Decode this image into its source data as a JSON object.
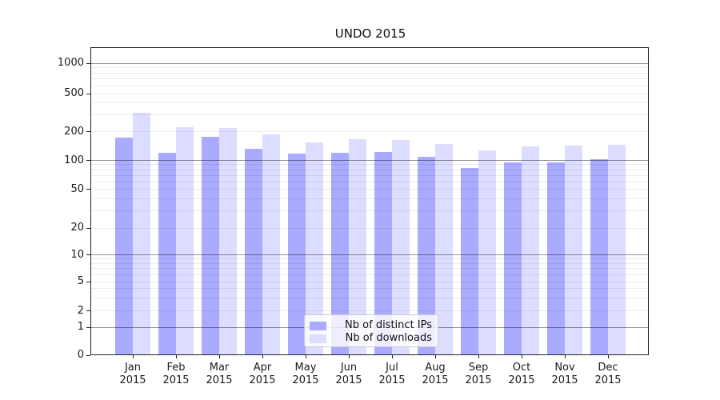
{
  "title": "UNDO 2015",
  "chart_data": {
    "type": "bar",
    "title": "UNDO 2015",
    "x_axis": {
      "months": [
        "Jan",
        "Feb",
        "Mar",
        "Apr",
        "May",
        "Jun",
        "Jul",
        "Aug",
        "Sep",
        "Oct",
        "Nov",
        "Dec"
      ],
      "year": "2015"
    },
    "y_axis": {
      "scale": "symlog",
      "ticks": [
        0,
        1,
        2,
        5,
        10,
        20,
        50,
        100,
        200,
        500,
        1000
      ],
      "ylim": [
        0,
        1450
      ],
      "major_grid_values": [
        1,
        10,
        100,
        1000
      ],
      "minor_grid_per_decade": [
        2,
        3,
        4,
        5,
        6,
        7,
        8,
        9
      ]
    },
    "series": [
      {
        "name": "Nb of distinct IPs",
        "color": "#aaaaff",
        "values": [
          170,
          120,
          175,
          132,
          117,
          120,
          121,
          107,
          83,
          94,
          94,
          102
        ]
      },
      {
        "name": "Nb of downloads",
        "color": "#ddddff",
        "values": [
          310,
          222,
          218,
          185,
          154,
          165,
          162,
          148,
          127,
          138,
          141,
          143
        ]
      }
    ],
    "grid": "horizontal, minor+major, drawn above bars",
    "legend_position": "lower center"
  }
}
